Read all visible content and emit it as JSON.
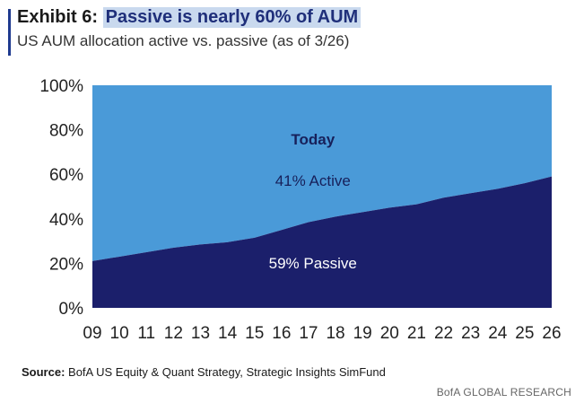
{
  "header": {
    "exhibit_label": "Exhibit 6:",
    "headline": "Passive is nearly 60% of AUM",
    "subtitle": "US AUM allocation active vs. passive (as of 3/26)"
  },
  "footer": {
    "source_label": "Source:",
    "source_text": "BofA US Equity & Quant Strategy, Strategic Insights SimFund",
    "brand": "BofA GLOBAL RESEARCH"
  },
  "colors": {
    "passive": "#1b1f6b",
    "active": "#4a9ad8",
    "accent": "#1f3a8f",
    "headline_highlight": "#c9d9ee"
  },
  "chart_data": {
    "type": "area",
    "stacked": true,
    "normalized_to": 100,
    "x": [
      "09",
      "10",
      "11",
      "12",
      "13",
      "14",
      "15",
      "16",
      "17",
      "18",
      "19",
      "20",
      "21",
      "22",
      "23",
      "24",
      "25",
      "26"
    ],
    "series": [
      {
        "name": "Passive",
        "values": [
          21,
          23,
          25,
          27,
          28.5,
          29.5,
          31.5,
          35,
          38.5,
          41,
          43,
          45,
          46.5,
          49.5,
          51.5,
          53.5,
          56,
          59
        ]
      },
      {
        "name": "Active",
        "values": [
          79,
          77,
          75,
          73,
          71.5,
          70.5,
          68.5,
          65,
          61.5,
          59,
          57,
          55,
          53.5,
          50.5,
          48.5,
          46.5,
          44,
          41
        ]
      }
    ],
    "yticks": [
      "0%",
      "20%",
      "40%",
      "60%",
      "80%",
      "100%"
    ],
    "ylim": [
      0,
      100
    ],
    "annotations": {
      "today": "Today",
      "active": "41% Active",
      "passive": "59% Passive"
    }
  }
}
